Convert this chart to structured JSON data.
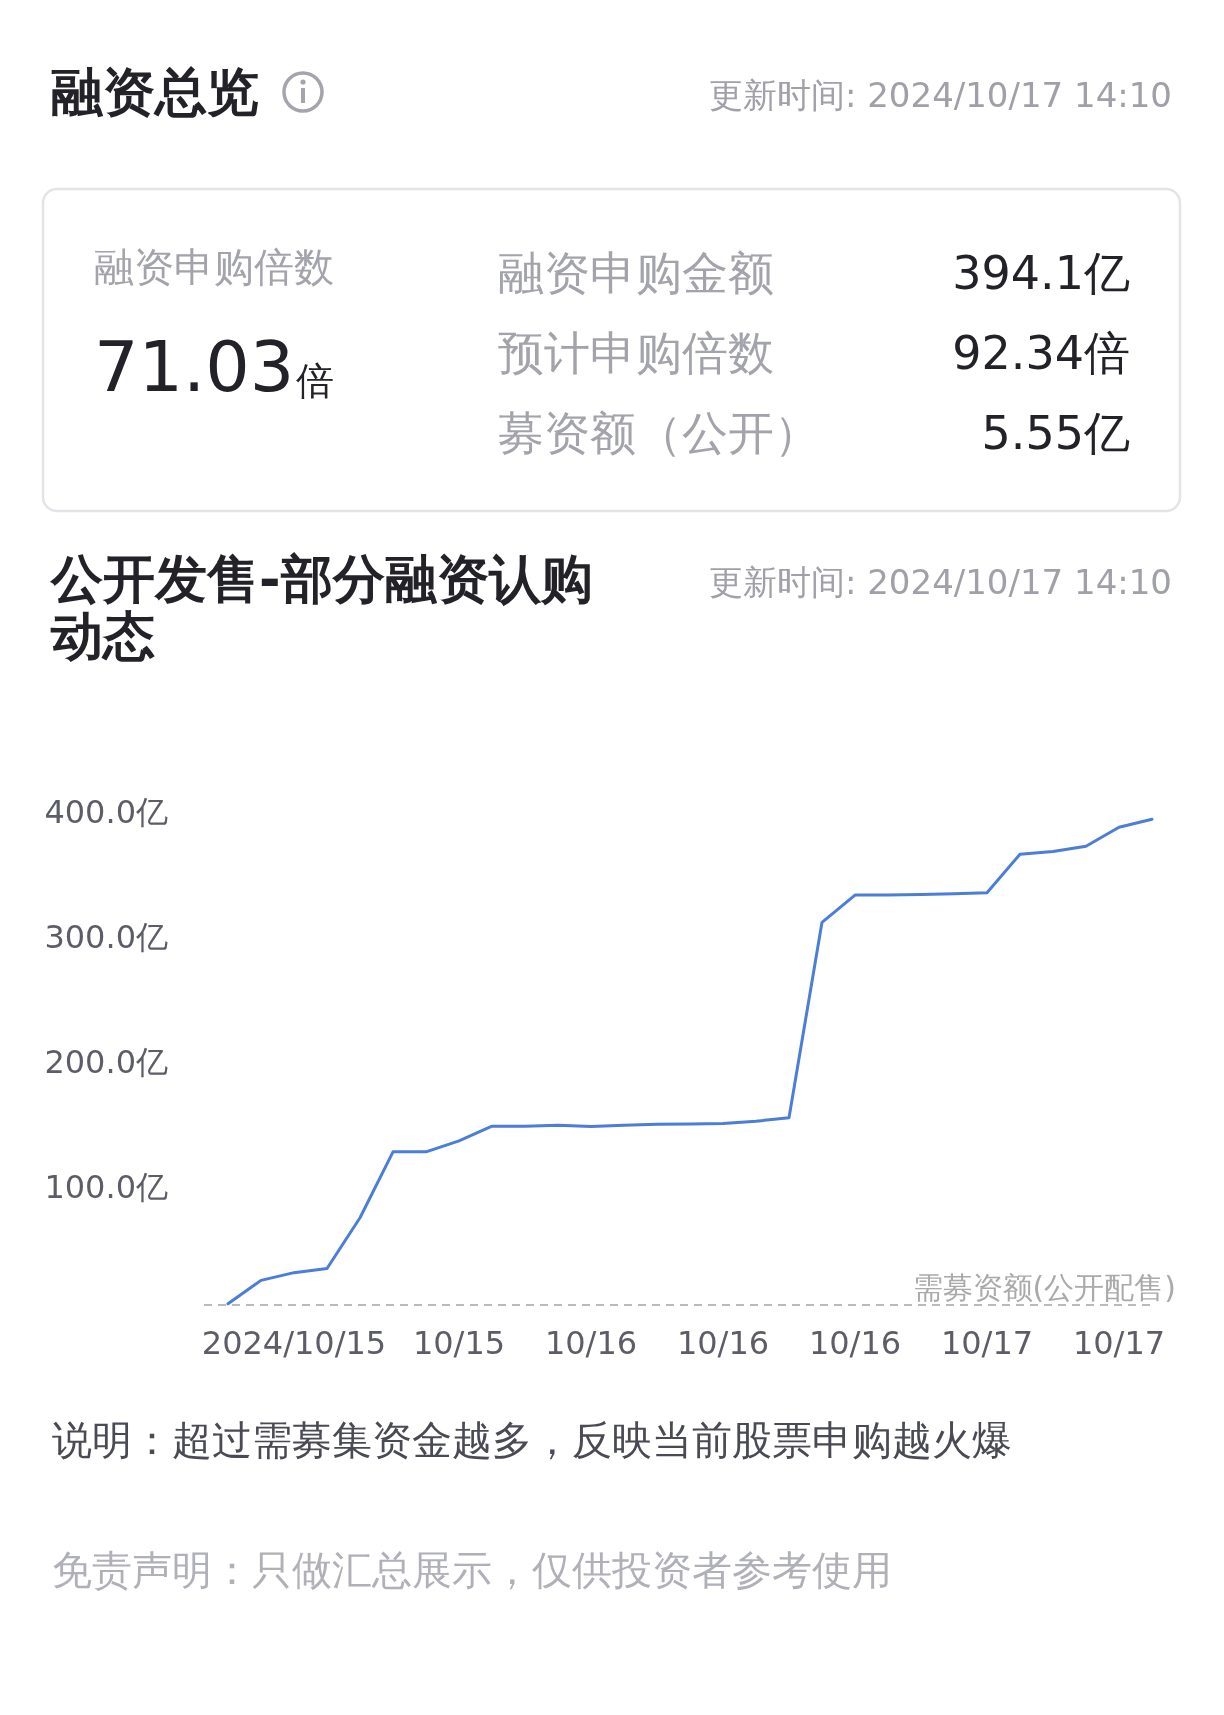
{
  "chart_data": [
    {
      "type": "other",
      "title": "融资总览",
      "subtitle": "更新时间: 2024/10/17 14:10",
      "annotations": [
        "融资申购倍数",
        "71.03倍",
        "融资申购金额",
        "394.1亿",
        "预计申购倍数",
        "92.34倍",
        "募资额（公开）",
        "5.55亿"
      ]
    },
    {
      "type": "line",
      "title": "公开发售-部分融资认购动态",
      "subtitle": "更新时间: 2024/10/17 14:10",
      "categories": [
        null,
        null,
        "2024/10/15",
        null,
        null,
        null,
        null,
        "10/15",
        null,
        null,
        null,
        "10/16",
        null,
        null,
        null,
        "10/16",
        null,
        null,
        null,
        "10/16",
        null,
        null,
        null,
        "10/17",
        null,
        null,
        null,
        "10/17",
        null
      ],
      "series": [
        {
          "color": "#4a7ed8",
          "values": [
            6.5,
            25.2,
            31.4,
            34.7,
            75.3,
            128.0,
            128.0,
            136.8,
            148.5,
            148.5,
            149.2,
            148.3,
            149.2,
            150.1,
            150.3,
            150.7,
            152.5,
            155.3,
            311.6,
            333.4,
            333.5,
            333.8,
            334.5,
            335.3,
            366.1,
            368.2,
            372.5,
            387.6,
            394.1
          ]
        }
      ],
      "ylim": [
        0,
        400
      ],
      "yticks": [
        {
          "value": 100,
          "label": "100.0亿"
        },
        {
          "value": 200,
          "label": "200.0亿"
        },
        {
          "value": 300,
          "label": "300.0亿"
        },
        {
          "value": 400,
          "label": "400.0亿"
        }
      ],
      "ref_lines": [
        {
          "axis": "y",
          "value": 5.55,
          "label": "需募资额(公开配售)",
          "color": "#bbbbbb",
          "line_style": "dashed"
        }
      ],
      "annotations": [
        "说明：超过需募集资金越多，反映当前股票申购越火爆",
        "免责声明：只做汇总展示，仅供投资者参考使用"
      ]
    }
  ]
}
